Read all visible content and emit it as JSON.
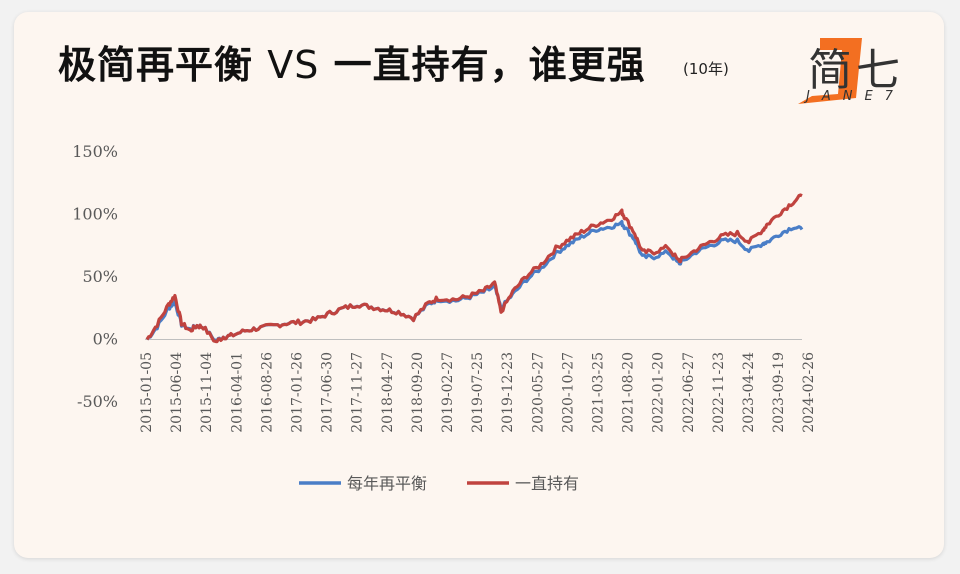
{
  "header": {
    "title_part1": "极简再平衡",
    "title_vs": "VS",
    "title_part2": "一直持有，谁更强",
    "subtitle": "(10年)"
  },
  "logo": {
    "text": "简七",
    "subtext": "JANE7",
    "color": "#f36f21"
  },
  "colors": {
    "rebalance": "#4a7ec7",
    "hold": "#c0433f",
    "axis": "#bfbfbf",
    "text": "#595959"
  },
  "chart_data": {
    "type": "line",
    "title": "",
    "xlabel": "",
    "ylabel": "",
    "ylim": [
      -0.5,
      1.5
    ],
    "yticks": [
      1.5,
      1.0,
      0.5,
      0,
      -0.5
    ],
    "ytick_labels": [
      "150%",
      "100%",
      "50%",
      "0%",
      "-50%"
    ],
    "xtick_labels": [
      "2015-01-05",
      "2015-06-04",
      "2015-11-04",
      "2016-04-01",
      "2016-08-26",
      "2017-01-26",
      "2017-06-30",
      "2017-11-27",
      "2018-04-27",
      "2018-09-20",
      "2019-02-27",
      "2019-07-25",
      "2019-12-23",
      "2020-05-27",
      "2020-10-27",
      "2021-03-25",
      "2021-08-20",
      "2022-01-20",
      "2022-06-27",
      "2022-11-23",
      "2023-04-24",
      "2023-09-19",
      "2024-02-26"
    ],
    "x": [
      "2015-01-05",
      "2015-03-01",
      "2015-05-01",
      "2015-06-04",
      "2015-07-10",
      "2015-08-25",
      "2015-10-01",
      "2015-11-04",
      "2016-01-10",
      "2016-02-20",
      "2016-04-01",
      "2016-06-15",
      "2016-08-26",
      "2016-11-15",
      "2017-01-26",
      "2017-04-10",
      "2017-06-30",
      "2017-09-15",
      "2017-11-27",
      "2018-02-10",
      "2018-04-27",
      "2018-07-10",
      "2018-09-20",
      "2018-12-10",
      "2019-02-27",
      "2019-04-20",
      "2019-07-25",
      "2019-10-10",
      "2019-12-23",
      "2020-02-20",
      "2020-03-25",
      "2020-05-27",
      "2020-08-10",
      "2020-10-27",
      "2021-01-15",
      "2021-03-25",
      "2021-06-01",
      "2021-08-20",
      "2021-11-01",
      "2022-01-05",
      "2022-01-20",
      "2022-03-15",
      "2022-04-25",
      "2022-06-27",
      "2022-09-10",
      "2022-11-05",
      "2022-11-23",
      "2023-02-10",
      "2023-04-24",
      "2023-07-05",
      "2023-09-19",
      "2023-11-20",
      "2024-02-05",
      "2024-02-26",
      "2024-05-10",
      "2024-07-15",
      "2024-09-01"
    ],
    "series": [
      {
        "name": "每年再平衡",
        "color": "#4a7ec7",
        "values": [
          0.0,
          0.1,
          0.25,
          0.3,
          0.12,
          0.08,
          0.11,
          0.1,
          -0.01,
          0.02,
          0.03,
          0.07,
          0.09,
          0.11,
          0.13,
          0.14,
          0.16,
          0.21,
          0.25,
          0.28,
          0.26,
          0.24,
          0.22,
          0.17,
          0.28,
          0.32,
          0.31,
          0.34,
          0.38,
          0.42,
          0.25,
          0.36,
          0.48,
          0.57,
          0.69,
          0.76,
          0.82,
          0.88,
          0.9,
          0.93,
          0.9,
          0.8,
          0.66,
          0.66,
          0.7,
          0.61,
          0.62,
          0.7,
          0.75,
          0.79,
          0.79,
          0.71,
          0.77,
          0.78,
          0.85,
          0.9,
          0.88
        ]
      },
      {
        "name": "一直持有",
        "color": "#c0433f",
        "values": [
          0.0,
          0.12,
          0.28,
          0.35,
          0.13,
          0.07,
          0.11,
          0.1,
          -0.02,
          0.02,
          0.03,
          0.07,
          0.09,
          0.11,
          0.13,
          0.14,
          0.16,
          0.21,
          0.25,
          0.28,
          0.26,
          0.24,
          0.22,
          0.17,
          0.29,
          0.33,
          0.32,
          0.35,
          0.39,
          0.45,
          0.22,
          0.38,
          0.51,
          0.6,
          0.73,
          0.8,
          0.86,
          0.92,
          0.96,
          1.02,
          0.98,
          0.85,
          0.7,
          0.7,
          0.74,
          0.63,
          0.64,
          0.72,
          0.78,
          0.83,
          0.85,
          0.78,
          0.88,
          0.92,
          1.02,
          1.1,
          1.15
        ]
      }
    ],
    "legend": {
      "position": "bottom",
      "labels": [
        "每年再平衡",
        "一直持有"
      ]
    },
    "grid": false
  }
}
